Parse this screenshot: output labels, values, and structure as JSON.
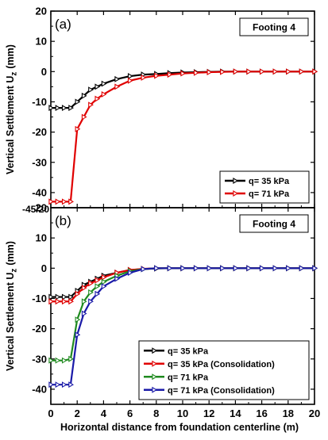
{
  "chart_data": [
    {
      "panel": "(a)",
      "type": "line",
      "annotation": "Footing 4",
      "ylabel": "Vertical Settlement U",
      "ylabel_sub": "z",
      "ylabel_unit": "(mm)",
      "xlabel": "",
      "xlim": [
        0,
        20
      ],
      "ylim": [
        -45,
        20
      ],
      "yticks": [
        20,
        10,
        0,
        -10,
        -20,
        -30,
        -40
      ],
      "xticks": [
        0,
        2,
        4,
        6,
        8,
        10,
        12,
        14,
        16,
        18,
        20
      ],
      "grid": false,
      "legend_position": "bottom-right",
      "series": [
        {
          "name": "q= 35 kPa",
          "color": "#000000",
          "marker": "triangle-right",
          "x": [
            0,
            0.5,
            1,
            1.5,
            2,
            2.5,
            3,
            3.5,
            4,
            5,
            6,
            7,
            8,
            9,
            10,
            11,
            12,
            13,
            14,
            15,
            16,
            17,
            18,
            19,
            20
          ],
          "y": [
            -12,
            -12,
            -12,
            -12,
            -10,
            -8,
            -6,
            -5,
            -4,
            -2.5,
            -1.5,
            -1,
            -0.8,
            -0.5,
            -0.3,
            -0.2,
            -0.1,
            0,
            0,
            0,
            0,
            0,
            0,
            0,
            0
          ]
        },
        {
          "name": "q= 71 kPa",
          "color": "#e00000",
          "marker": "triangle-right",
          "x": [
            0,
            0.5,
            1,
            1.5,
            2,
            2.5,
            3,
            3.5,
            4,
            5,
            6,
            7,
            8,
            9,
            10,
            11,
            12,
            13,
            14,
            15,
            16,
            17,
            18,
            19,
            20
          ],
          "y": [
            -43,
            -43,
            -43,
            -43,
            -19,
            -15,
            -11,
            -9,
            -7.5,
            -5,
            -3,
            -2,
            -1.4,
            -1,
            -0.6,
            -0.4,
            -0.2,
            -0.1,
            0,
            0,
            0,
            0,
            0,
            0,
            0
          ]
        }
      ]
    },
    {
      "panel": "(b)",
      "type": "line",
      "annotation": "Footing 4",
      "ylabel": "Vertical Settlement U",
      "ylabel_sub": "z",
      "ylabel_unit": "(mm)",
      "xlabel": "Horizontal distance from foundation centerline (m)",
      "xlim": [
        0,
        20
      ],
      "ylim": [
        -45,
        20
      ],
      "yticks": [
        20,
        10,
        0,
        -10,
        -20,
        -30,
        -40
      ],
      "xticks": [
        0,
        2,
        4,
        6,
        8,
        10,
        12,
        14,
        16,
        18,
        20
      ],
      "grid": false,
      "legend_position": "bottom-right",
      "series": [
        {
          "name": "q= 35 kPa",
          "color": "#000000",
          "marker": "triangle-right",
          "x": [
            0,
            0.5,
            1,
            1.5,
            2,
            2.5,
            3,
            3.5,
            4,
            5,
            6,
            7,
            8,
            9,
            10,
            11,
            12,
            13,
            14,
            15,
            16,
            17,
            18,
            19,
            20
          ],
          "y": [
            -9.5,
            -9.5,
            -9.5,
            -9.5,
            -7.5,
            -5.5,
            -4.5,
            -3.5,
            -2.5,
            -1.5,
            -0.6,
            -0.3,
            -0.1,
            0,
            0,
            0,
            0,
            0,
            0,
            0,
            0,
            0,
            0,
            0,
            0
          ]
        },
        {
          "name": "q= 35 kPa (Consolidation)",
          "color": "#e00000",
          "marker": "triangle-right",
          "x": [
            0,
            0.5,
            1,
            1.5,
            2,
            2.5,
            3,
            3.5,
            4,
            5,
            6,
            7,
            8,
            9,
            10,
            11,
            12,
            13,
            14,
            15,
            16,
            17,
            18,
            19,
            20
          ],
          "y": [
            -11,
            -11,
            -11,
            -11,
            -8.5,
            -6.5,
            -5,
            -4,
            -3,
            -1.5,
            -0.6,
            -0.2,
            0,
            0,
            0,
            0,
            0,
            0,
            0,
            0,
            0,
            0,
            0,
            0,
            0
          ]
        },
        {
          "name": "q= 71 kPa",
          "color": "#1f8a1f",
          "marker": "triangle-right",
          "x": [
            0,
            0.5,
            1,
            1.5,
            2,
            2.5,
            3,
            3.5,
            4,
            5,
            6,
            7,
            8,
            9,
            10,
            11,
            12,
            13,
            14,
            15,
            16,
            17,
            18,
            19,
            20
          ],
          "y": [
            -30.5,
            -30.5,
            -30.5,
            -30,
            -17,
            -11,
            -8,
            -6,
            -4.5,
            -2.5,
            -1,
            -0.3,
            0,
            0,
            0,
            0,
            0,
            0,
            0,
            0,
            0,
            0,
            0,
            0,
            0
          ]
        },
        {
          "name": "q= 71 kPa (Consolidation)",
          "color": "#1a1aa8",
          "marker": "triangle-right",
          "x": [
            0,
            0.5,
            1,
            1.5,
            2,
            2.5,
            3,
            3.5,
            4,
            5,
            6,
            7,
            8,
            9,
            10,
            11,
            12,
            13,
            14,
            15,
            16,
            17,
            18,
            19,
            20
          ],
          "y": [
            -38.5,
            -38.5,
            -38.5,
            -38.5,
            -22,
            -15,
            -11,
            -8.5,
            -6,
            -3.5,
            -1.5,
            -0.3,
            0,
            0,
            0,
            0,
            0,
            0,
            0,
            0,
            0,
            0,
            0,
            0,
            0
          ]
        }
      ]
    }
  ],
  "stray_label": "-45/20"
}
